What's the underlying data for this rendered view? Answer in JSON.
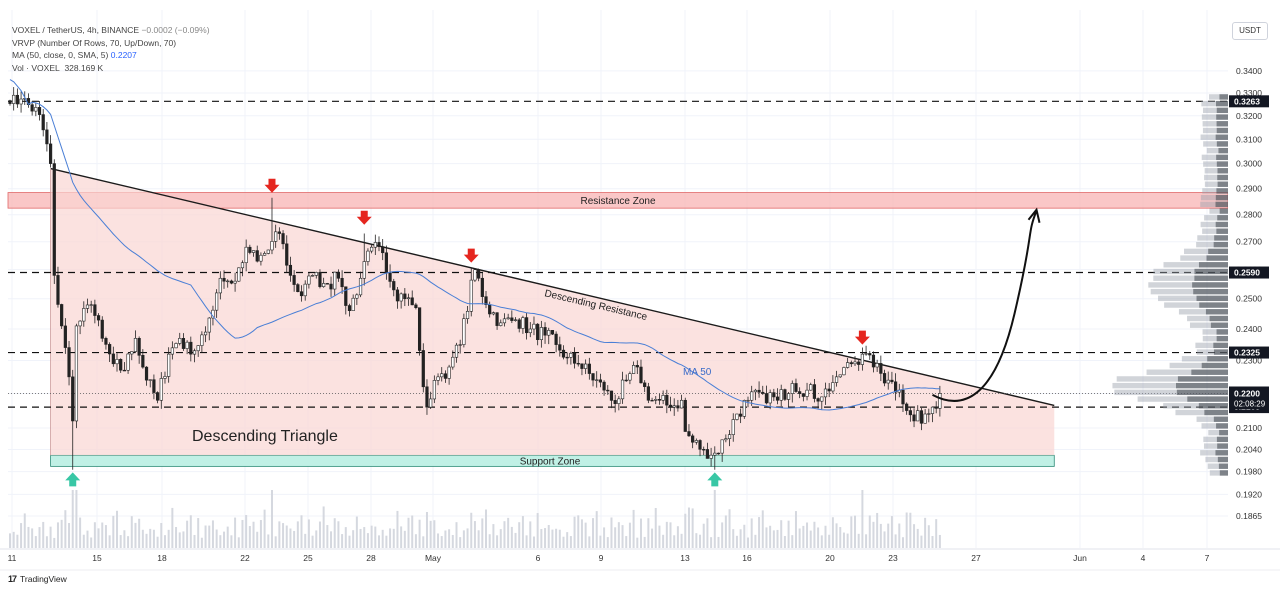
{
  "header": {
    "symbol_line": "VOXEL / TetherUS, 4h, BINANCE",
    "change": "−0.0002 (−0.09%)",
    "vrvp": "VRVP (Number Of Rows, 70, Up/Down, 70)",
    "ma_label": "MA (50, close, 0, SMA, 5)",
    "ma_value": "0.2207",
    "vol_label": "Vol · VOXEL",
    "vol_value": "328.169 K"
  },
  "currency": "USDT",
  "brand": "TradingView",
  "chart_data": {
    "type": "candlestick",
    "price_axis": {
      "ticks": [
        "0.3400",
        "0.3300",
        "0.3200",
        "0.3100",
        "0.3000",
        "0.2900",
        "0.2800",
        "0.2700",
        "0.2600",
        "0.2500",
        "0.2400",
        "0.2300",
        "0.2200",
        "0.2100",
        "0.2040",
        "0.1980",
        "0.1920",
        "0.1865"
      ],
      "tick_values": [
        0.34,
        0.33,
        0.32,
        0.31,
        0.3,
        0.29,
        0.28,
        0.27,
        0.26,
        0.25,
        0.24,
        0.23,
        0.22,
        0.21,
        0.204,
        0.198,
        0.192,
        0.1865
      ],
      "scale": "log",
      "range": [
        0.183,
        0.345
      ]
    },
    "time_axis": {
      "labels": [
        "11",
        "15",
        "18",
        "22",
        "25",
        "28",
        "May",
        "6",
        "9",
        "13",
        "16",
        "20",
        "23",
        "27",
        "Jun",
        "4",
        "7"
      ]
    },
    "levels": [
      {
        "label": "0.3263",
        "value": 0.3263,
        "current": false
      },
      {
        "label": "0.2590",
        "value": 0.259,
        "current": false
      },
      {
        "label": "0.2325",
        "value": 0.2325,
        "current": false
      },
      {
        "label": "0.2160",
        "value": 0.216,
        "current": false
      },
      {
        "label": "0.2200",
        "value": 0.22,
        "current": true,
        "countdown": "02:08:29"
      }
    ],
    "zones": [
      {
        "label": "Resistance Zone",
        "from": 0.2825,
        "to": 0.2885,
        "color": "#f8b4b4"
      },
      {
        "label": "Support Zone",
        "from": 0.1994,
        "to": 0.2024,
        "color": "#b9eee2"
      }
    ],
    "triangle_label": "Descending Triangle",
    "trendline_label": "Descending Resistance",
    "ma_series_label": "MA 50",
    "triangle": {
      "start_bar": 11,
      "start_top": 0.298,
      "end_bar": 283,
      "end_top": 0.2165,
      "bottom": 0.2024
    },
    "projection": "up",
    "markers": {
      "down": [
        {
          "bar": 71,
          "price": 0.2865
        },
        {
          "bar": 96,
          "price": 0.2744
        },
        {
          "bar": 125,
          "price": 0.2607
        },
        {
          "bar": 231,
          "price": 0.2334
        }
      ],
      "up": [
        {
          "bar": 17,
          "price": 0.1994
        },
        {
          "bar": 191,
          "price": 0.1994
        }
      ]
    },
    "candles": {
      "count": 253,
      "anchors": [
        [
          0,
          0.3253
        ],
        [
          3,
          0.3273
        ],
        [
          8,
          0.3205
        ],
        [
          11,
          0.3
        ],
        [
          12,
          0.258
        ],
        [
          14,
          0.241
        ],
        [
          16,
          0.225
        ],
        [
          17,
          0.212
        ],
        [
          18,
          0.241
        ],
        [
          22,
          0.248
        ],
        [
          25,
          0.237
        ],
        [
          28,
          0.229
        ],
        [
          31,
          0.227
        ],
        [
          34,
          0.237
        ],
        [
          37,
          0.224
        ],
        [
          40,
          0.218
        ],
        [
          43,
          0.232
        ],
        [
          46,
          0.237
        ],
        [
          49,
          0.232
        ],
        [
          53,
          0.239
        ],
        [
          57,
          0.257
        ],
        [
          61,
          0.256
        ],
        [
          64,
          0.268
        ],
        [
          67,
          0.263
        ],
        [
          70,
          0.267
        ],
        [
          73,
          0.273
        ],
        [
          76,
          0.258
        ],
        [
          79,
          0.251
        ],
        [
          82,
          0.258
        ],
        [
          86,
          0.255
        ],
        [
          89,
          0.257
        ],
        [
          92,
          0.246
        ],
        [
          95,
          0.257
        ],
        [
          98,
          0.268
        ],
        [
          101,
          0.266
        ],
        [
          104,
          0.253
        ],
        [
          107,
          0.25
        ],
        [
          110,
          0.247
        ],
        [
          112,
          0.222
        ],
        [
          113,
          0.216
        ],
        [
          116,
          0.225
        ],
        [
          119,
          0.228
        ],
        [
          122,
          0.235
        ],
        [
          126,
          0.26
        ],
        [
          129,
          0.248
        ],
        [
          133,
          0.242
        ],
        [
          137,
          0.243
        ],
        [
          141,
          0.24
        ],
        [
          145,
          0.238
        ],
        [
          148,
          0.235
        ],
        [
          151,
          0.231
        ],
        [
          154,
          0.229
        ],
        [
          157,
          0.226
        ],
        [
          161,
          0.221
        ],
        [
          164,
          0.217
        ],
        [
          167,
          0.224
        ],
        [
          170,
          0.228
        ],
        [
          173,
          0.218
        ],
        [
          176,
          0.218
        ],
        [
          179,
          0.216
        ],
        [
          182,
          0.218
        ],
        [
          183,
          0.209
        ],
        [
          185,
          0.206
        ],
        [
          188,
          0.204
        ],
        [
          191,
          0.203
        ],
        [
          194,
          0.207
        ],
        [
          197,
          0.214
        ],
        [
          200,
          0.218
        ],
        [
          204,
          0.22
        ],
        [
          208,
          0.218
        ],
        [
          212,
          0.223
        ],
        [
          216,
          0.221
        ],
        [
          220,
          0.219
        ],
        [
          224,
          0.225
        ],
        [
          228,
          0.229
        ],
        [
          231,
          0.232
        ],
        [
          234,
          0.228
        ],
        [
          238,
          0.224
        ],
        [
          241,
          0.221
        ],
        [
          243,
          0.215
        ],
        [
          245,
          0.212
        ],
        [
          248,
          0.214
        ],
        [
          250,
          0.216
        ],
        [
          252,
          0.22
        ]
      ],
      "wicks": [
        [
          3,
          0.3305
        ],
        [
          17,
          0.1985
        ],
        [
          71,
          0.2865
        ],
        [
          96,
          0.273
        ],
        [
          125,
          0.2607
        ],
        [
          191,
          0.1985
        ],
        [
          231,
          0.2334
        ]
      ],
      "volume": [
        0.2,
        0.65,
        0.18,
        0.85,
        0.95,
        0.98,
        0.55,
        0.3,
        0.7,
        0.9
      ]
    }
  }
}
